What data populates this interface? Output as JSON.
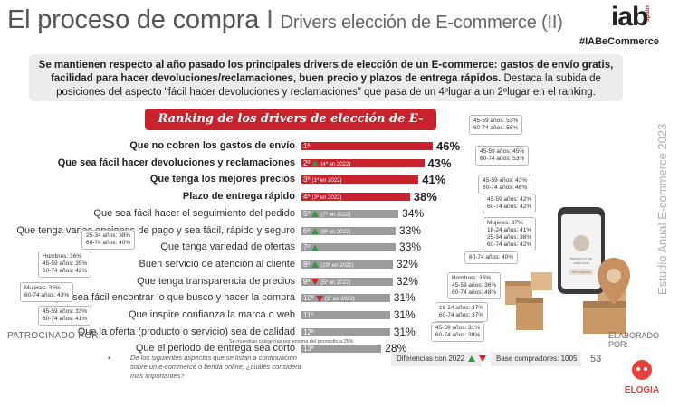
{
  "header": {
    "title": "El proceso de compra",
    "separator": "I",
    "subtitle": "Drivers elección de E-commerce (II)",
    "brand": "iab",
    "brand_region": "spain",
    "hashtag": "#IABeCommerce"
  },
  "summary": {
    "bold": "Se mantienen respecto al año pasado los principales drivers de elección de un E-commerce: gastos de envío gratis, facilidad para hacer devoluciones/reclamaciones, buen precio y plazos de entrega rápidos.",
    "normal": "Destaca la subida de posiciones del aspecto \"fácil hacer devoluciones y reclamaciones\" que pasa de un 4ºlugar a un 2ºlugar en el ranking."
  },
  "side_text": "Estudio Anual E-commerce 2023",
  "colors": {
    "accent": "#c8232c",
    "bar_grey": "#9b9b9b",
    "up": "#2e9b3c",
    "down": "#d0202a"
  },
  "chart_data": {
    "type": "bar",
    "orientation": "horizontal",
    "title": "Ranking de los drivers de elección de E-commerce",
    "categories": [
      "Que no cobren los gastos de envío",
      "Que sea fácil hacer devoluciones y reclamaciones",
      "Que tenga los mejores precios",
      "Plazo de entrega rápido",
      "Que sea fácil hacer el seguimiento del pedido",
      "Que tenga varias opciones de pago y sea fácil, rápido y seguro",
      "Que tenga variedad de ofertas",
      "Buen servicio de atención al cliente",
      "Que tenga transparencia de precios",
      "Que sea fácil encontrar lo que busco y hacer la compra",
      "Que inspire confianza la marca o web",
      "Que la oferta (producto o servicio) sea de calidad",
      "Que el periodo de entrega sea corto"
    ],
    "values": [
      46,
      43,
      41,
      38,
      34,
      33,
      33,
      32,
      32,
      31,
      31,
      31,
      28
    ],
    "value_labels": [
      "46%",
      "43%",
      "41%",
      "38%",
      "34%",
      "33%",
      "33%",
      "32%",
      "32%",
      "31%",
      "31%",
      "31%",
      "28%"
    ],
    "ranks": [
      "1º",
      "2º",
      "3º",
      "4º",
      "5º",
      "6º",
      "7º",
      "8º",
      "9º",
      "10º",
      "11º",
      "12º",
      "13º"
    ],
    "previous_rank": [
      "",
      "(4º en 2022)",
      "(1º en 2022)",
      "(3º en 2022)",
      "(7º en 2022)",
      "(8º en 2022)",
      "",
      "(10º en 2022)",
      "(5º en 2022)",
      "(6º en 2022)",
      "",
      "",
      ""
    ],
    "change": [
      "",
      "up",
      "",
      "",
      "up",
      "up",
      "up",
      "up",
      "down",
      "down",
      "",
      "",
      ""
    ],
    "highlighted_top": 4,
    "footnote": "Se muestran categorías por encima del promedio a 25%",
    "legend": "Diferencias con 2022"
  },
  "callouts": [
    {
      "lines": [
        "45-59 años: 53%",
        "60-74 años: 56%"
      ]
    },
    {
      "lines": [
        "45-59 años: 45%",
        "60-74 años: 53%"
      ]
    },
    {
      "lines": [
        "45-59 años: 43%",
        "60-74 años: 46%"
      ]
    },
    {
      "lines": [
        "45-59 años: 42%",
        "60-74 años: 42%"
      ]
    },
    {
      "lines": [
        "Mujeres: 37%",
        "16-24 años: 41%",
        "25-34 años: 38%",
        "60-74 años: 42%"
      ]
    },
    {
      "lines": [
        "25-34 años: 38%",
        "60-74 años: 40%"
      ]
    },
    {
      "lines": [
        "Hombres: 36%",
        "45-59 años: 35%",
        "60-74 años: 42%"
      ]
    },
    {
      "lines": [
        "60-74 años: 40%"
      ]
    },
    {
      "lines": [
        "Mujeres: 35%",
        "60-74 años: 43%"
      ]
    },
    {
      "lines": [
        "Hombres: 36%",
        "45-59 años: 36%",
        "60-74 años: 48%"
      ]
    },
    {
      "lines": [
        "45-59 años: 33%",
        "60-74 años: 41%"
      ]
    },
    {
      "lines": [
        "16-24 años: 37%",
        "60-74 años: 37%"
      ]
    },
    {
      "lines": [
        "45-59 años: 31%",
        "60-74 años: 39%"
      ]
    }
  ],
  "phone": {
    "lines": [
      "Welcome to our",
      "online store",
      "Let's shopping"
    ]
  },
  "footer": {
    "patrocinado": "PATROCINADO POR:",
    "elaborado": "ELABORADO POR:",
    "bullet": "•",
    "question": "De los siguientes aspectos que se listan a continuación sobre un e-commerce o tienda online, ¿cuáles considera más importantes?",
    "base": "Base compradores: 1005",
    "page": "53",
    "partner": "ELOGIA"
  }
}
